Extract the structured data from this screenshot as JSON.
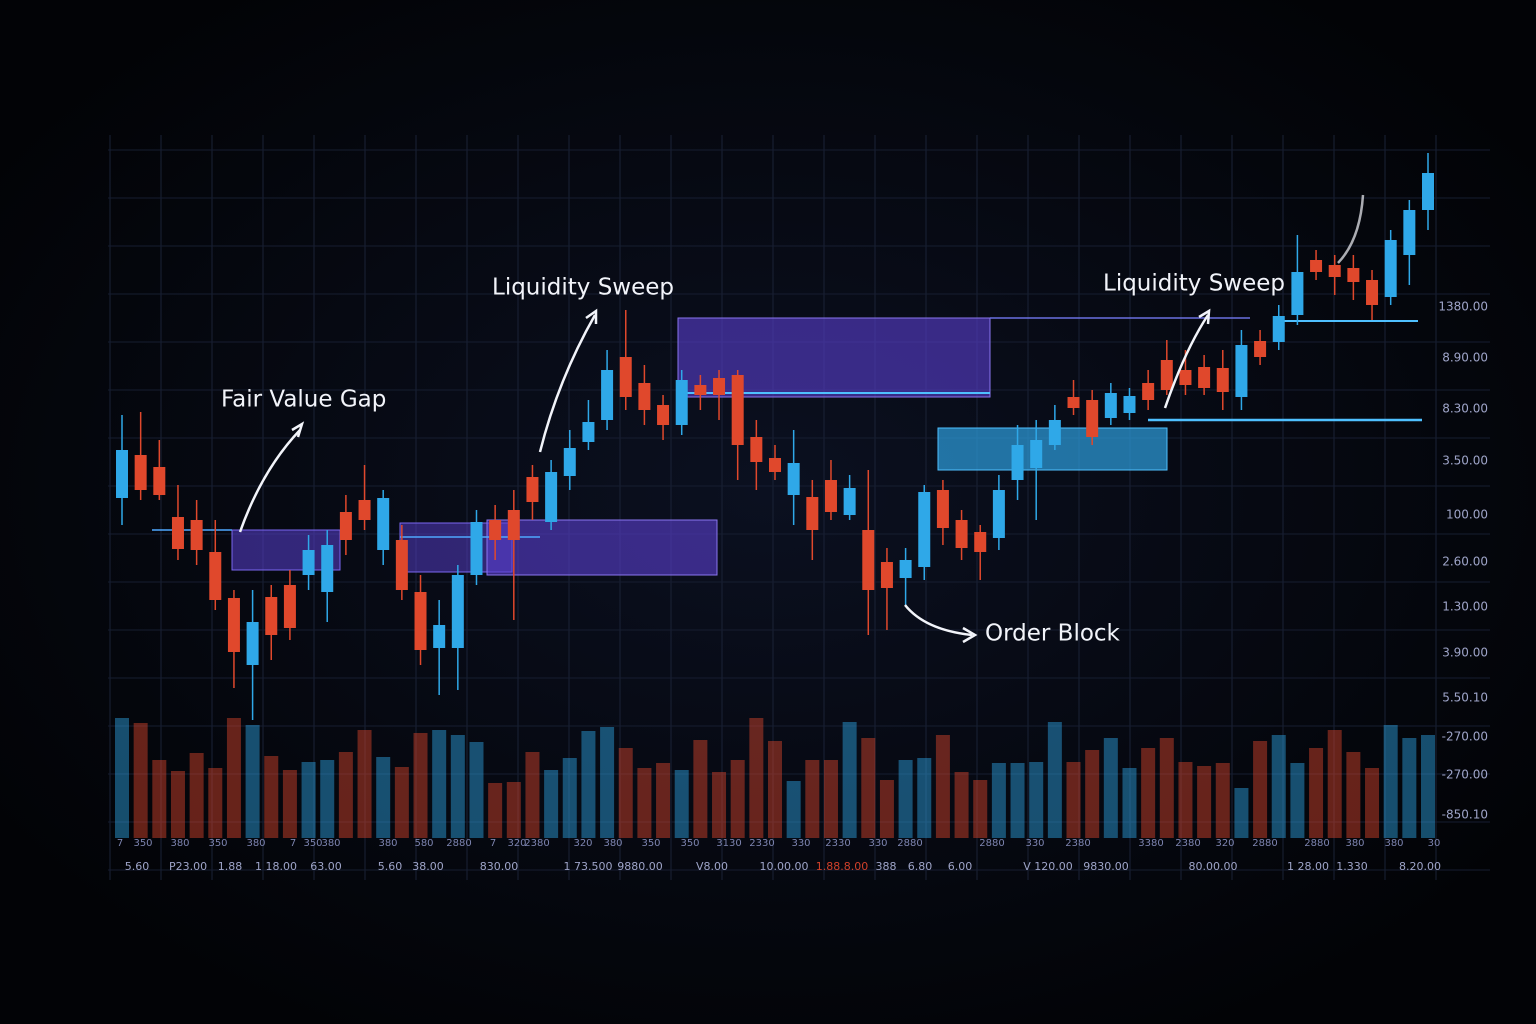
{
  "chart_data": {
    "type": "candlestick",
    "annotations": [
      "Fair Value Gap",
      "Liquidity Sweep",
      "Order Block",
      "Liquidity Sweep"
    ],
    "price_labels": [
      "1380.00",
      "8.90.00",
      "8.30.00",
      "3.50.00",
      "100.00",
      "2.60.00",
      "1.30.00",
      "3.90.00",
      "5.50.10",
      "-270.00",
      "-270.00",
      "-850.10"
    ],
    "bottom_labels_1": [
      "7",
      "350",
      "380",
      "350",
      "380",
      "7",
      "350",
      "380",
      "380",
      "580",
      "2880",
      "7",
      "320",
      "2380",
      "320",
      "380",
      "350",
      "350",
      "3130",
      "2330",
      "330",
      "2330",
      "330",
      "2880",
      "2880",
      "330",
      "2380",
      "3380",
      "2380",
      "320",
      "2880",
      "2880",
      "380",
      "380",
      "30"
    ],
    "bottom_labels_2": [
      "5.60",
      "P23.00",
      "1.88",
      "1 18.00",
      "63.00",
      "5.60",
      "38.00",
      "830.00",
      "1 73.500",
      "9880.00",
      "V8.00",
      "10.00.00",
      "1.88.8.00",
      "388",
      "6.80",
      "6.00",
      "V 120.00",
      "9830.00",
      "80.00.00",
      "1 28.00",
      "1.330",
      "8.20.00"
    ],
    "up_color": "#2fa8e8",
    "down_color": "#e0482c",
    "ylim": [
      0,
      580
    ],
    "volume_ylim": [
      0,
      130
    ],
    "open": [
      222,
      265,
      253,
      203,
      200,
      168,
      122,
      55,
      123,
      135,
      145,
      128,
      208,
      220,
      170,
      180,
      128,
      72,
      72,
      145,
      200,
      210,
      243,
      198,
      244,
      278,
      300,
      363,
      337,
      315,
      295,
      335,
      342,
      345,
      283,
      262,
      225,
      223,
      240,
      205,
      190,
      158,
      142,
      153,
      230,
      200,
      188,
      182,
      240,
      252,
      275,
      323,
      320,
      302,
      307,
      337,
      360,
      350,
      353,
      352,
      323,
      379,
      378,
      405,
      460,
      455,
      452,
      440,
      423,
      465,
      510
    ],
    "high": [
      305,
      308,
      280,
      235,
      220,
      200,
      130,
      130,
      135,
      150,
      185,
      190,
      225,
      255,
      230,
      195,
      145,
      120,
      155,
      210,
      215,
      230,
      255,
      260,
      290,
      320,
      370,
      410,
      355,
      325,
      350,
      345,
      350,
      350,
      300,
      275,
      290,
      240,
      260,
      245,
      250,
      172,
      172,
      235,
      240,
      210,
      195,
      245,
      295,
      300,
      315,
      340,
      330,
      337,
      332,
      350,
      380,
      370,
      365,
      370,
      390,
      390,
      415,
      485,
      470,
      465,
      465,
      450,
      490,
      520,
      567
    ],
    "low": [
      195,
      220,
      220,
      160,
      155,
      110,
      32,
      0,
      60,
      80,
      130,
      98,
      165,
      190,
      155,
      120,
      55,
      25,
      30,
      135,
      160,
      100,
      200,
      190,
      230,
      270,
      290,
      310,
      295,
      280,
      285,
      310,
      300,
      240,
      230,
      240,
      195,
      160,
      200,
      200,
      85,
      90,
      115,
      140,
      175,
      160,
      140,
      170,
      220,
      200,
      270,
      305,
      275,
      295,
      300,
      310,
      325,
      325,
      325,
      310,
      310,
      355,
      370,
      395,
      440,
      425,
      420,
      400,
      415,
      435,
      490
    ],
    "close": [
      270,
      230,
      225,
      171,
      170,
      120,
      68,
      98,
      85,
      92,
      170,
      175,
      180,
      200,
      222,
      130,
      70,
      95,
      145,
      198,
      180,
      180,
      218,
      248,
      272,
      298,
      350,
      323,
      310,
      295,
      340,
      325,
      325,
      275,
      258,
      248,
      257,
      190,
      208,
      232,
      130,
      132,
      160,
      228,
      192,
      172,
      168,
      230,
      275,
      280,
      300,
      312,
      283,
      327,
      324,
      320,
      330,
      335,
      332,
      328,
      375,
      363,
      404,
      448,
      448,
      443,
      438,
      415,
      480,
      510,
      547
    ],
    "volume": [
      120,
      115,
      78,
      67,
      85,
      70,
      120,
      113,
      82,
      68,
      76,
      78,
      86,
      108,
      81,
      71,
      105,
      108,
      103,
      96,
      55,
      56,
      86,
      68,
      80,
      107,
      111,
      90,
      70,
      75,
      68,
      98,
      66,
      78,
      120,
      97,
      57,
      78,
      78,
      116,
      100,
      58,
      78,
      80,
      103,
      66,
      58,
      75,
      75,
      76,
      116,
      76,
      88,
      100,
      70,
      90,
      100,
      76,
      72,
      75,
      50,
      97,
      103,
      75,
      90,
      108,
      86,
      70,
      113,
      100,
      103
    ]
  }
}
